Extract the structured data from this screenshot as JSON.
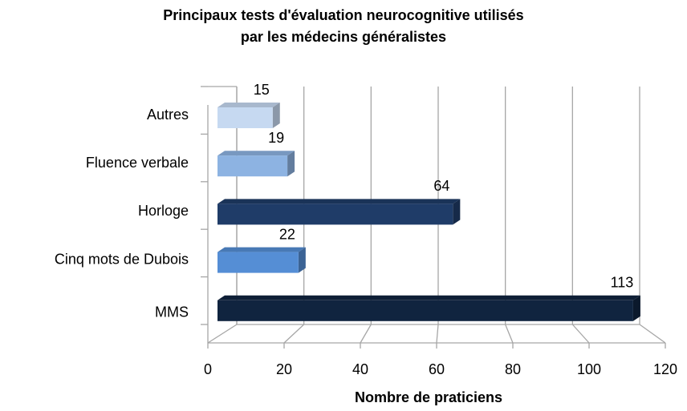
{
  "chart_data": {
    "type": "bar3d",
    "title": "Principaux tests d'évaluation neurocognitive utilisés par les médecins généralistes",
    "x_label": "Nombre de praticiens",
    "categories": [
      "Autres",
      "Fluence verbale",
      "Horloge",
      "Cinq mots de Dubois",
      "MMS"
    ],
    "values": [
      15,
      19,
      64,
      22,
      113
    ],
    "colors": [
      "#c6d9f1",
      "#8db3e2",
      "#1f3c68",
      "#558ed5",
      "#10243f"
    ],
    "xlim": [
      0,
      120
    ],
    "xticks": [
      0,
      20,
      40,
      60,
      80,
      100,
      120
    ],
    "grid": true
  }
}
